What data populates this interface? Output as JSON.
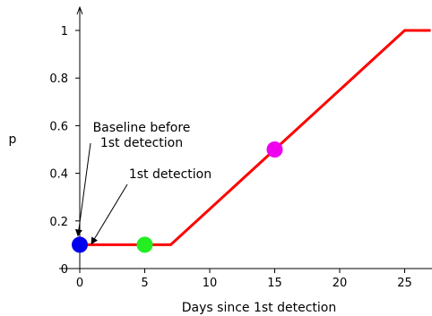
{
  "chart_data": {
    "type": "line",
    "title": "",
    "xlabel": "Days since 1st detection",
    "ylabel": "p",
    "xlim": [
      -1.5,
      27
    ],
    "ylim": [
      0,
      1.1
    ],
    "x_ticks": [
      0,
      5,
      10,
      15,
      20,
      25
    ],
    "y_ticks": [
      0,
      0.2,
      0.4,
      0.6,
      0.8,
      1
    ],
    "x_tick_labels": [
      "0",
      "5",
      "10",
      "15",
      "20",
      "25"
    ],
    "y_tick_labels": [
      "0",
      "0.2",
      "0.4",
      "0.6",
      "0.8",
      "1"
    ],
    "grid": false,
    "legend": "none",
    "series": [
      {
        "color": "#ff0000",
        "x": [
          0,
          7,
          25,
          27
        ],
        "y": [
          0.1,
          0.1,
          1.0,
          1.0
        ]
      }
    ],
    "markers": [
      {
        "x": 0,
        "y": 0.1,
        "color": "#0000ee"
      },
      {
        "x": 5,
        "y": 0.1,
        "color": "#22ee22"
      },
      {
        "x": 15,
        "y": 0.5,
        "color": "#ee00ee"
      }
    ],
    "annotations": [
      {
        "lines": [
          "Baseline before",
          "1st detection"
        ],
        "x": 0,
        "y": 0.1
      },
      {
        "lines": [
          "1st detection"
        ],
        "x": 0,
        "y": 0.1
      }
    ]
  }
}
